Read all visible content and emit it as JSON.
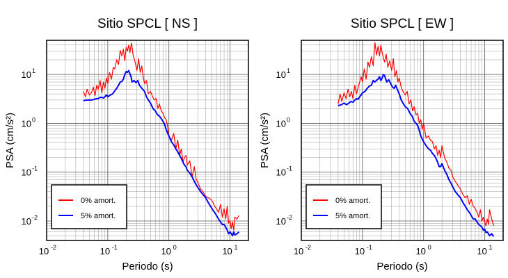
{
  "chart_data": [
    {
      "type": "line",
      "title": "Sitio SPCL [ NS ]",
      "xlabel": "Periodo (s)",
      "ylabel": "PSA (cm/s²)",
      "xscale": "log",
      "yscale": "log",
      "xlim": [
        0.01,
        20
      ],
      "ylim": [
        0.004,
        50
      ],
      "grid": true,
      "legend_position": "bottom-left",
      "x_ticks": [
        {
          "value": 0.01,
          "base": "10",
          "exp": "-2"
        },
        {
          "value": 0.1,
          "base": "10",
          "exp": "-1"
        },
        {
          "value": 1,
          "base": "10",
          "exp": "0"
        },
        {
          "value": 10,
          "base": "10",
          "exp": "1"
        }
      ],
      "y_ticks": [
        {
          "value": 0.01,
          "base": "10",
          "exp": "-2"
        },
        {
          "value": 0.1,
          "base": "10",
          "exp": "-1"
        },
        {
          "value": 1,
          "base": "10",
          "exp": "0"
        },
        {
          "value": 10,
          "base": "10",
          "exp": "1"
        }
      ],
      "series": [
        {
          "name": "0% amort.",
          "color": "#ff0000",
          "x": [
            0.04,
            0.043,
            0.046,
            0.05,
            0.054,
            0.058,
            0.062,
            0.066,
            0.07,
            0.075,
            0.08,
            0.085,
            0.09,
            0.095,
            0.1,
            0.107,
            0.115,
            0.123,
            0.13,
            0.14,
            0.15,
            0.16,
            0.17,
            0.18,
            0.19,
            0.2,
            0.21,
            0.22,
            0.23,
            0.245,
            0.26,
            0.28,
            0.3,
            0.32,
            0.34,
            0.36,
            0.38,
            0.4,
            0.43,
            0.46,
            0.5,
            0.54,
            0.58,
            0.62,
            0.66,
            0.7,
            0.75,
            0.8,
            0.85,
            0.9,
            0.95,
            1.0,
            1.1,
            1.2,
            1.3,
            1.4,
            1.5,
            1.6,
            1.7,
            1.8,
            1.9,
            2.0,
            2.2,
            2.4,
            2.6,
            2.8,
            3.0,
            3.3,
            3.6,
            4.0,
            4.4,
            4.8,
            5.2,
            5.6,
            6.0,
            6.5,
            7.0,
            7.5,
            8.0,
            8.5,
            9.0,
            9.5,
            10.0,
            10.5,
            11.0,
            11.5,
            12.0,
            13.0,
            14.0
          ],
          "y": [
            4.5,
            3.5,
            5.0,
            3.8,
            4.2,
            5.5,
            3.7,
            6.0,
            5.0,
            7.5,
            4.2,
            7.0,
            5.2,
            8.5,
            6.5,
            11.0,
            8.0,
            14.0,
            13.0,
            20.0,
            16.0,
            31.0,
            24.0,
            33.0,
            19.0,
            36.0,
            30.0,
            40.0,
            28.0,
            44.0,
            25.0,
            18.0,
            12.0,
            21.0,
            11.0,
            15.0,
            9.0,
            6.5,
            7.5,
            4.0,
            4.5,
            3.5,
            3.0,
            3.2,
            2.0,
            2.5,
            1.8,
            1.6,
            1.3,
            1.2,
            0.9,
            0.55,
            0.45,
            0.62,
            0.3,
            0.45,
            0.22,
            0.3,
            0.16,
            0.2,
            0.22,
            0.14,
            0.17,
            0.08,
            0.13,
            0.07,
            0.06,
            0.045,
            0.04,
            0.032,
            0.03,
            0.028,
            0.025,
            0.02,
            0.018,
            0.015,
            0.022,
            0.012,
            0.018,
            0.011,
            0.02,
            0.009,
            0.01,
            0.007,
            0.0095,
            0.0065,
            0.012,
            0.011,
            0.013
          ]
        },
        {
          "name": "5% amort.",
          "color": "#0000ff",
          "x": [
            0.04,
            0.045,
            0.05,
            0.055,
            0.06,
            0.065,
            0.07,
            0.075,
            0.08,
            0.085,
            0.09,
            0.095,
            0.1,
            0.11,
            0.12,
            0.13,
            0.14,
            0.15,
            0.16,
            0.17,
            0.18,
            0.19,
            0.2,
            0.21,
            0.22,
            0.23,
            0.24,
            0.25,
            0.27,
            0.29,
            0.31,
            0.33,
            0.35,
            0.37,
            0.4,
            0.43,
            0.46,
            0.5,
            0.55,
            0.6,
            0.65,
            0.7,
            0.75,
            0.8,
            0.85,
            0.9,
            1.0,
            1.1,
            1.2,
            1.3,
            1.4,
            1.5,
            1.6,
            1.7,
            1.8,
            1.9,
            2.0,
            2.2,
            2.4,
            2.6,
            2.8,
            3.0,
            3.3,
            3.6,
            4.0,
            4.4,
            4.8,
            5.2,
            5.6,
            6.0,
            6.5,
            7.0,
            7.5,
            8.0,
            8.5,
            9.0,
            9.5,
            10.0,
            10.5,
            11.0,
            11.5,
            12.0,
            13.0,
            14.0
          ],
          "y": [
            2.9,
            3.0,
            3.0,
            3.0,
            3.1,
            3.2,
            3.2,
            3.4,
            3.4,
            3.3,
            3.5,
            3.8,
            3.5,
            3.8,
            4.0,
            4.6,
            5.2,
            6.0,
            7.0,
            7.2,
            8.0,
            10.0,
            11.5,
            11.0,
            12.0,
            10.5,
            9.0,
            7.0,
            7.5,
            6.8,
            7.5,
            6.0,
            5.5,
            5.0,
            4.5,
            3.5,
            3.0,
            2.6,
            2.0,
            1.8,
            1.5,
            1.4,
            1.25,
            1.1,
            0.95,
            0.75,
            0.55,
            0.42,
            0.36,
            0.3,
            0.26,
            0.22,
            0.19,
            0.16,
            0.14,
            0.13,
            0.11,
            0.095,
            0.08,
            0.065,
            0.055,
            0.048,
            0.04,
            0.035,
            0.03,
            0.024,
            0.02,
            0.017,
            0.015,
            0.013,
            0.011,
            0.0095,
            0.0085,
            0.0085,
            0.0075,
            0.0065,
            0.0055,
            0.006,
            0.0055,
            0.005,
            0.006,
            0.0052,
            0.0055,
            0.006
          ]
        }
      ]
    },
    {
      "type": "line",
      "title": "Sitio SPCL [ EW ]",
      "xlabel": "Periodo (s)",
      "ylabel": "PSA (cm/s²)",
      "xscale": "log",
      "yscale": "log",
      "xlim": [
        0.01,
        20
      ],
      "ylim": [
        0.004,
        50
      ],
      "grid": true,
      "legend_position": "bottom-left",
      "x_ticks": [
        {
          "value": 0.01,
          "base": "10",
          "exp": "-2"
        },
        {
          "value": 0.1,
          "base": "10",
          "exp": "-1"
        },
        {
          "value": 1,
          "base": "10",
          "exp": "0"
        },
        {
          "value": 10,
          "base": "10",
          "exp": "1"
        }
      ],
      "y_ticks": [
        {
          "value": 0.01,
          "base": "10",
          "exp": "-2"
        },
        {
          "value": 0.1,
          "base": "10",
          "exp": "-1"
        },
        {
          "value": 1,
          "base": "10",
          "exp": "0"
        },
        {
          "value": 10,
          "base": "10",
          "exp": "1"
        }
      ],
      "series": [
        {
          "name": "0% amort.",
          "color": "#ff0000",
          "x": [
            0.04,
            0.043,
            0.046,
            0.05,
            0.054,
            0.058,
            0.062,
            0.066,
            0.07,
            0.075,
            0.08,
            0.085,
            0.09,
            0.095,
            0.1,
            0.107,
            0.115,
            0.123,
            0.13,
            0.14,
            0.15,
            0.16,
            0.17,
            0.18,
            0.19,
            0.2,
            0.21,
            0.22,
            0.23,
            0.245,
            0.26,
            0.28,
            0.3,
            0.32,
            0.34,
            0.36,
            0.38,
            0.4,
            0.43,
            0.46,
            0.5,
            0.54,
            0.58,
            0.62,
            0.66,
            0.7,
            0.75,
            0.8,
            0.85,
            0.9,
            0.95,
            1.0,
            1.1,
            1.2,
            1.3,
            1.4,
            1.5,
            1.6,
            1.7,
            1.8,
            1.9,
            2.0,
            2.2,
            2.4,
            2.6,
            2.8,
            3.0,
            3.3,
            3.6,
            4.0,
            4.4,
            4.8,
            5.2,
            5.6,
            6.0,
            6.5,
            7.0,
            7.5,
            8.0,
            8.5,
            9.0,
            9.5,
            10.0,
            10.5,
            11.0,
            11.5,
            12.0,
            13.0,
            14.0
          ],
          "y": [
            2.5,
            4.0,
            2.8,
            4.2,
            3.2,
            5.0,
            3.5,
            4.5,
            3.2,
            6.0,
            4.0,
            5.5,
            7.0,
            9.0,
            7.0,
            13.0,
            8.0,
            18.0,
            14.0,
            23.0,
            15.0,
            45.0,
            25.0,
            38.0,
            24.0,
            40.0,
            28.0,
            22.0,
            18.0,
            26.0,
            14.0,
            19.0,
            12.0,
            21.0,
            9.0,
            12.0,
            7.0,
            8.5,
            5.5,
            4.5,
            3.8,
            4.5,
            2.5,
            3.0,
            1.8,
            2.2,
            1.5,
            1.6,
            1.0,
            1.2,
            0.75,
            1.0,
            0.5,
            0.55,
            0.45,
            0.42,
            0.3,
            0.35,
            0.22,
            0.28,
            0.2,
            0.35,
            0.2,
            0.16,
            0.12,
            0.11,
            0.08,
            0.065,
            0.055,
            0.045,
            0.035,
            0.03,
            0.033,
            0.022,
            0.028,
            0.02,
            0.018,
            0.015,
            0.012,
            0.017,
            0.01,
            0.012,
            0.0095,
            0.008,
            0.011,
            0.0085,
            0.017,
            0.011,
            0.008
          ]
        },
        {
          "name": "5% amort.",
          "color": "#0000ff",
          "x": [
            0.04,
            0.045,
            0.05,
            0.055,
            0.06,
            0.065,
            0.07,
            0.075,
            0.08,
            0.085,
            0.09,
            0.095,
            0.1,
            0.11,
            0.12,
            0.13,
            0.14,
            0.15,
            0.16,
            0.17,
            0.18,
            0.19,
            0.2,
            0.21,
            0.22,
            0.23,
            0.24,
            0.25,
            0.27,
            0.29,
            0.31,
            0.33,
            0.35,
            0.37,
            0.4,
            0.43,
            0.46,
            0.5,
            0.55,
            0.6,
            0.65,
            0.7,
            0.75,
            0.8,
            0.85,
            0.9,
            1.0,
            1.1,
            1.2,
            1.3,
            1.4,
            1.5,
            1.6,
            1.7,
            1.8,
            1.9,
            2.0,
            2.2,
            2.4,
            2.6,
            2.8,
            3.0,
            3.3,
            3.6,
            4.0,
            4.4,
            4.8,
            5.2,
            5.6,
            6.0,
            6.5,
            7.0,
            7.5,
            8.0,
            8.5,
            9.0,
            9.5,
            10.0,
            10.5,
            11.0,
            11.5,
            12.0,
            13.0,
            14.0
          ],
          "y": [
            2.3,
            2.4,
            2.6,
            2.4,
            2.6,
            2.8,
            2.7,
            3.0,
            3.2,
            3.1,
            3.5,
            3.8,
            4.2,
            4.5,
            5.2,
            5.8,
            6.0,
            7.5,
            7.0,
            7.6,
            8.0,
            9.0,
            7.5,
            8.5,
            10.0,
            9.5,
            8.0,
            7.0,
            7.8,
            6.5,
            5.5,
            5.2,
            6.0,
            5.0,
            4.0,
            3.0,
            2.6,
            2.2,
            2.0,
            1.6,
            1.4,
            1.1,
            1.0,
            0.9,
            0.72,
            0.55,
            0.42,
            0.35,
            0.3,
            0.28,
            0.24,
            0.22,
            0.19,
            0.16,
            0.13,
            0.13,
            0.15,
            0.11,
            0.09,
            0.07,
            0.06,
            0.05,
            0.04,
            0.035,
            0.03,
            0.024,
            0.02,
            0.017,
            0.015,
            0.013,
            0.011,
            0.011,
            0.0095,
            0.0085,
            0.008,
            0.0075,
            0.0065,
            0.0068,
            0.0058,
            0.006,
            0.0055,
            0.005,
            0.0055,
            0.0048
          ]
        }
      ]
    }
  ]
}
